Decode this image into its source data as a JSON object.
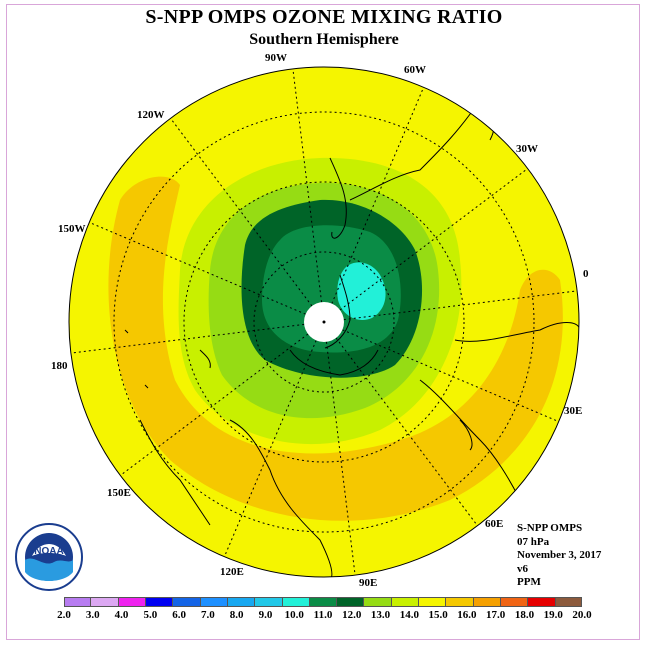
{
  "title": "S-NPP OMPS OZONE MIXING RATIO",
  "subtitle": "Southern Hemisphere",
  "longitude_labels": [
    "90W",
    "60W",
    "30W",
    "0",
    "30E",
    "60E",
    "90E",
    "120E",
    "150E",
    "180",
    "150W",
    "120W"
  ],
  "info": {
    "instrument": "S-NPP OMPS",
    "pressure": "07 hPa",
    "date": "November 3, 2017",
    "version": "v6",
    "unit": "PPM"
  },
  "logo_text": "NOAA",
  "colorbar": {
    "labels": [
      "2.0",
      "3.0",
      "4.0",
      "5.0",
      "6.0",
      "7.0",
      "8.0",
      "9.0",
      "10.0",
      "11.0",
      "12.0",
      "13.0",
      "14.0",
      "15.0",
      "16.0",
      "17.0",
      "18.0",
      "19.0",
      "20.0"
    ],
    "colors": [
      "#b77cf0",
      "#dca8f2",
      "#ef23ef",
      "#0000f0",
      "#1464e6",
      "#1e90ff",
      "#18a8f0",
      "#22c8e8",
      "#22f0d8",
      "#0a8c46",
      "#006428",
      "#96dc14",
      "#c8f000",
      "#f5f500",
      "#f5c800",
      "#f5a000",
      "#f06414",
      "#e60000",
      "#8c5a3c"
    ],
    "unit": "PPM"
  }
}
